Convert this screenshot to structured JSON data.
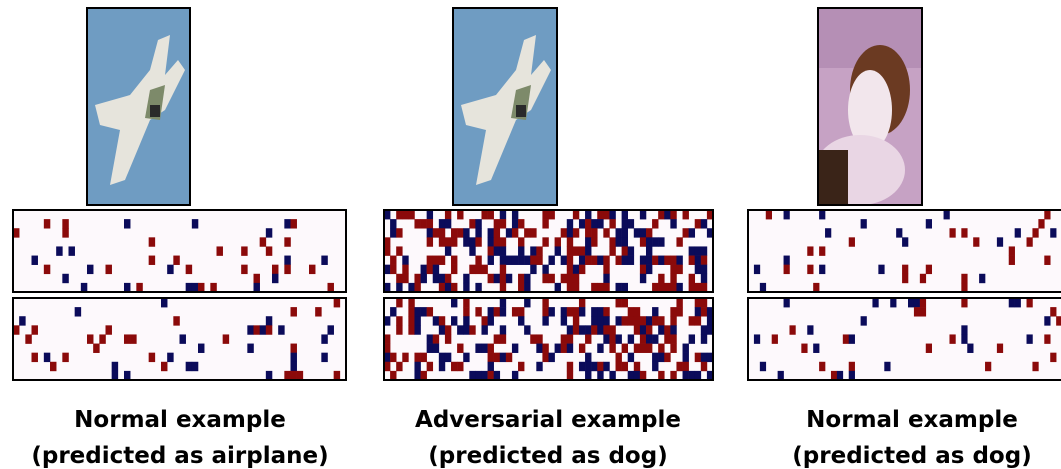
{
  "panels": [
    {
      "caption": "Normal example",
      "subcaption": "(predicted as airplane)"
    },
    {
      "caption": "Adversarial example",
      "subcaption": "(predicted as dog)"
    },
    {
      "caption": "Normal example",
      "subcaption": "(predicted as dog)"
    }
  ]
}
